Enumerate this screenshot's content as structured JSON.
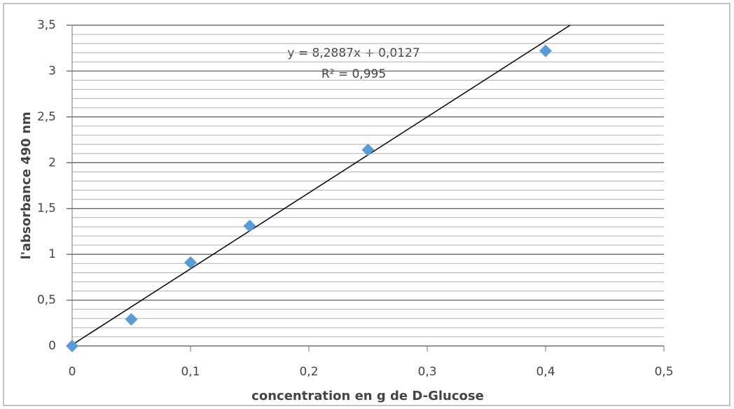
{
  "chart_data": {
    "type": "scatter",
    "x_label": "concentration en g de D-Glucose",
    "y_label": "l'absorbance 490 nm",
    "series": [
      {
        "color": "#5b9bd5",
        "x": [
          0,
          0.05,
          0.1,
          0.15,
          0.25,
          0.4
        ],
        "values": [
          0,
          0.29,
          0.91,
          1.31,
          2.14,
          3.22
        ]
      }
    ],
    "trendline": {
      "slope": 8.2887,
      "intercept": 0.0127,
      "color": "#000000",
      "label": "y = 8,2887x + 0,0127",
      "r2_label": "R² = 0,995"
    },
    "xlim": [
      0,
      0.5
    ],
    "xticks": [
      0,
      {
        "value": 0.1,
        "label": "0,1"
      },
      {
        "value": 0.2,
        "label": "0,2"
      },
      {
        "value": 0.3,
        "label": "0,3"
      },
      {
        "value": 0.4,
        "label": "0,4"
      },
      {
        "value": 0.5,
        "label": "0,5"
      }
    ],
    "ylim": [
      0,
      3.5
    ],
    "yticks": [
      0,
      {
        "value": 0.5,
        "label": "0,5"
      },
      1,
      {
        "value": 1.5,
        "label": "1,5"
      },
      2,
      {
        "value": 2.5,
        "label": "2,5"
      },
      3,
      {
        "value": 3.5,
        "label": "3,5"
      }
    ],
    "grid": true,
    "minor_grid": true
  }
}
